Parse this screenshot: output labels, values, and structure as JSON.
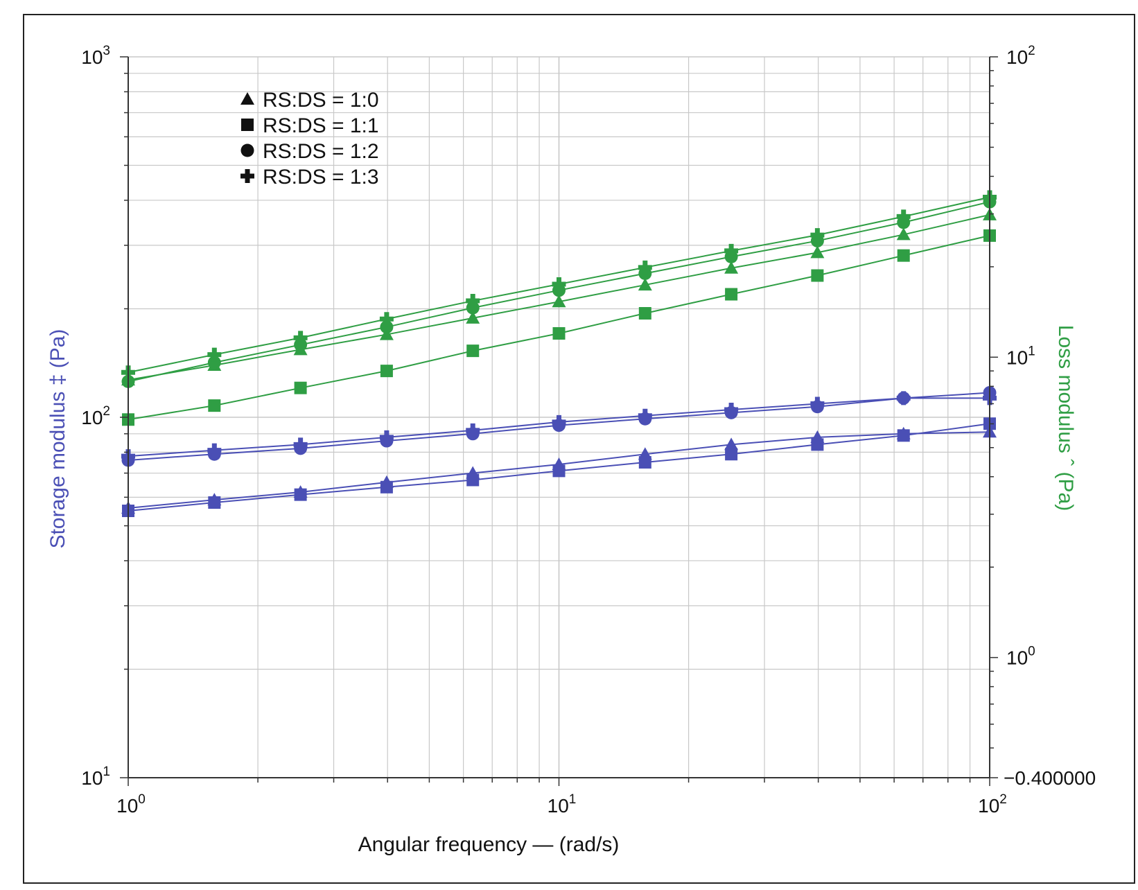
{
  "chart_data": {
    "type": "line",
    "xlabel": "Angular frequency — (rad/s)",
    "ylabel_left": "Storage modulus ‡ (Pa)",
    "ylabel_right": "Loss modulus ˆ (Pa)",
    "x_scale": "log",
    "y_left_scale": "log",
    "y_right_scale": "log",
    "xlim": [
      1,
      100
    ],
    "ylim_left": [
      10,
      1000
    ],
    "ylim_right": [
      0.398,
      100
    ],
    "x_ticks": [
      {
        "base": "10",
        "exp": "0"
      },
      {
        "base": "10",
        "exp": "1"
      },
      {
        "base": "10",
        "exp": "2"
      }
    ],
    "y_left_ticks": [
      {
        "base": "10",
        "exp": "1"
      },
      {
        "base": "10",
        "exp": "2"
      },
      {
        "base": "10",
        "exp": "3"
      }
    ],
    "y_right_ticks": [
      {
        "base": "10",
        "exp": "0"
      },
      {
        "base": "10",
        "exp": "1"
      },
      {
        "base": "10",
        "exp": "2"
      }
    ],
    "y_right_bottom_label": "−0.400000",
    "grid": true,
    "legend_position": "top-left",
    "colors": {
      "storage": "#4a4fb5",
      "loss": "#2f9e44",
      "axis": "#333333",
      "grid": "#c8c8c8"
    },
    "x": [
      1,
      1.585,
      2.512,
      3.981,
      6.31,
      10,
      15.85,
      25.12,
      39.81,
      63.1,
      100
    ],
    "legend": [
      {
        "label": "RS:DS = 1:0",
        "marker": "triangle"
      },
      {
        "label": "RS:DS = 1:1",
        "marker": "square"
      },
      {
        "label": "RS:DS = 1:2",
        "marker": "circle"
      },
      {
        "label": "RS:DS = 1:3",
        "marker": "cross"
      }
    ],
    "storage_series": [
      {
        "ratio": "RS:DS = 1:0",
        "marker": "triangle",
        "values": [
          56,
          59,
          62,
          66,
          70,
          74,
          79,
          84,
          88,
          90,
          91
        ]
      },
      {
        "ratio": "RS:DS = 1:1",
        "marker": "square",
        "values": [
          55,
          58,
          61,
          64,
          67,
          71,
          75,
          79,
          84,
          89,
          96
        ]
      },
      {
        "ratio": "RS:DS = 1:2",
        "marker": "circle",
        "values": [
          76,
          79,
          82,
          86,
          90,
          95,
          99,
          103,
          107,
          113,
          117
        ]
      },
      {
        "ratio": "RS:DS = 1:3",
        "marker": "cross",
        "values": [
          78,
          81,
          84,
          88,
          92,
          97,
          101,
          105,
          109,
          113,
          113
        ]
      }
    ],
    "loss_series": [
      {
        "ratio": "RS:DS = 1:0",
        "marker": "triangle",
        "values": [
          8.4,
          9.4,
          10.6,
          11.9,
          13.5,
          15.3,
          17.4,
          19.8,
          22.3,
          25.6,
          29.8
        ]
      },
      {
        "ratio": "RS:DS = 1:1",
        "marker": "square",
        "values": [
          6.2,
          6.9,
          7.9,
          9.0,
          10.5,
          12.0,
          14.0,
          16.2,
          18.7,
          21.8,
          25.4
        ]
      },
      {
        "ratio": "RS:DS = 1:2",
        "marker": "circle",
        "values": [
          8.3,
          9.6,
          11.0,
          12.6,
          14.6,
          16.7,
          19.0,
          21.6,
          24.4,
          28.1,
          32.9
        ]
      },
      {
        "ratio": "RS:DS = 1:3",
        "marker": "cross",
        "values": [
          8.9,
          10.2,
          11.6,
          13.4,
          15.4,
          17.5,
          19.9,
          22.6,
          25.5,
          29.4,
          34.1
        ]
      }
    ]
  }
}
